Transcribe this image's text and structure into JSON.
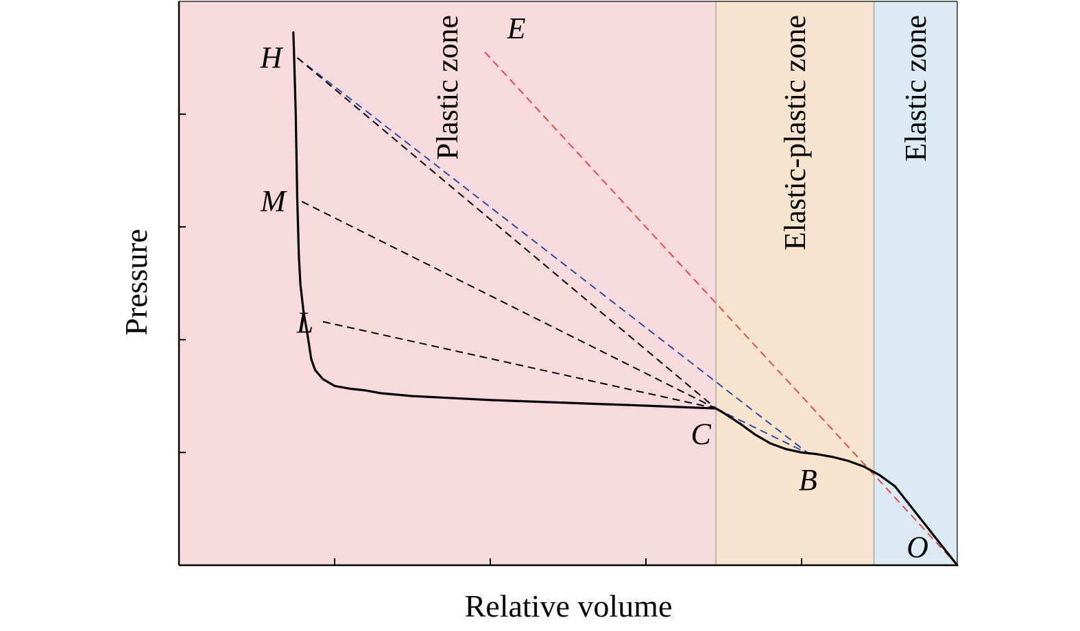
{
  "chart_data": {
    "type": "line",
    "title": "",
    "xlabel": "Relative volume",
    "ylabel": "Pressure",
    "xlim": [
      0,
      1
    ],
    "ylim": [
      0,
      1
    ],
    "tick_labels_shown": false,
    "x_ticks": [
      0.2,
      0.4,
      0.6,
      0.8
    ],
    "y_ticks": [
      0.2,
      0.4,
      0.6,
      0.8
    ],
    "zones": [
      {
        "label": "Plastic zone",
        "x_range": [
          0,
          0.69
        ],
        "color": "#f6dadd"
      },
      {
        "label": "Elastic-plastic zone",
        "x_range": [
          0.69,
          0.893
        ],
        "color": "#f7e4ce"
      },
      {
        "label": "Elastic zone",
        "x_range": [
          0.893,
          1
        ],
        "color": "#dbeaf3"
      }
    ],
    "zone_boundary_color": "#aaaaaa",
    "series": [
      {
        "style": "solid",
        "color": "#000000",
        "points": [
          [
            1.0,
            0.0
          ],
          [
            0.98,
            0.035
          ],
          [
            0.96,
            0.07
          ],
          [
            0.94,
            0.105
          ],
          [
            0.92,
            0.14
          ],
          [
            0.9,
            0.16
          ],
          [
            0.88,
            0.175
          ],
          [
            0.86,
            0.185
          ],
          [
            0.84,
            0.192
          ],
          [
            0.82,
            0.197
          ],
          [
            0.8,
            0.2
          ],
          [
            0.78,
            0.206
          ],
          [
            0.76,
            0.216
          ],
          [
            0.74,
            0.232
          ],
          [
            0.72,
            0.252
          ],
          [
            0.7,
            0.27
          ],
          [
            0.69,
            0.278
          ],
          [
            0.6,
            0.283
          ],
          [
            0.5,
            0.288
          ],
          [
            0.4,
            0.293
          ],
          [
            0.3,
            0.3
          ],
          [
            0.26,
            0.305
          ],
          [
            0.24,
            0.31
          ],
          [
            0.22,
            0.313
          ],
          [
            0.2,
            0.318
          ],
          [
            0.185,
            0.33
          ],
          [
            0.175,
            0.346
          ],
          [
            0.17,
            0.365
          ],
          [
            0.165,
            0.41
          ],
          [
            0.16,
            0.45
          ],
          [
            0.156,
            0.498
          ],
          [
            0.154,
            0.55
          ],
          [
            0.152,
            0.65
          ],
          [
            0.15,
            0.8
          ],
          [
            0.148,
            0.9
          ],
          [
            0.147,
            0.945
          ]
        ]
      },
      {
        "style": "dashed",
        "color": "#e24a4a",
        "points": [
          [
            0.393,
            0.91
          ],
          [
            1.0,
            0.0
          ]
        ]
      },
      {
        "style": "dashed",
        "color": "#2b4aa0",
        "points": [
          [
            0.152,
            0.9
          ],
          [
            0.81,
            0.197
          ]
        ]
      },
      {
        "style": "dashed",
        "color": "#2b4aa0",
        "points": [
          [
            0.69,
            0.278
          ],
          [
            0.81,
            0.197
          ]
        ]
      },
      {
        "style": "dashed",
        "color": "#000000",
        "points": [
          [
            0.152,
            0.9
          ],
          [
            0.69,
            0.278
          ]
        ]
      },
      {
        "style": "dashed",
        "color": "#000000",
        "points": [
          [
            0.158,
            0.645
          ],
          [
            0.69,
            0.278
          ]
        ]
      },
      {
        "style": "dashed",
        "color": "#000000",
        "points": [
          [
            0.185,
            0.432
          ],
          [
            0.69,
            0.278
          ]
        ]
      }
    ],
    "point_labels": [
      {
        "label": "H",
        "x": 0.152,
        "y": 0.9
      },
      {
        "label": "E",
        "x": 0.393,
        "y": 0.91
      },
      {
        "label": "M",
        "x": 0.158,
        "y": 0.645
      },
      {
        "label": "L",
        "x": 0.185,
        "y": 0.432
      },
      {
        "label": "C",
        "x": 0.69,
        "y": 0.278
      },
      {
        "label": "B",
        "x": 0.81,
        "y": 0.197
      },
      {
        "label": "O",
        "x": 1.0,
        "y": 0.0
      }
    ]
  }
}
